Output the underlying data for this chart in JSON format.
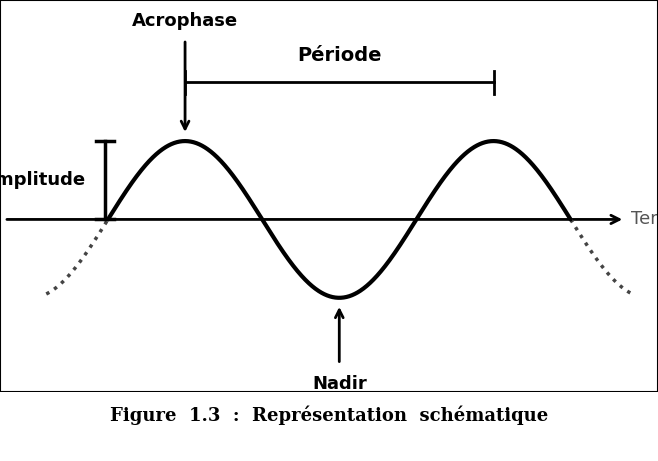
{
  "background_color": "#ffffff",
  "sine_color": "#000000",
  "sine_linewidth": 3.0,
  "axis_color": "#000000",
  "axis_linewidth": 2.0,
  "annotation_color": "#000000",
  "dotted_color": "#444444",
  "dotted_linewidth": 2.5,
  "amplitude": 1.0,
  "nadir_label": "Nadir",
  "acrophase_label": "Acrophase",
  "periode_label": "Période",
  "amplitude_label": "Amplitude",
  "temps_label": "Temps",
  "label_fontsize": 13,
  "border_color": "#000000",
  "border_linewidth": 1.5,
  "xlim": [
    -2.0,
    14.0
  ],
  "ylim": [
    -2.2,
    2.8
  ],
  "acro_x": 2.5,
  "period_val": 7.5,
  "amp_val": 1.0,
  "amp_bar_x": 0.55
}
